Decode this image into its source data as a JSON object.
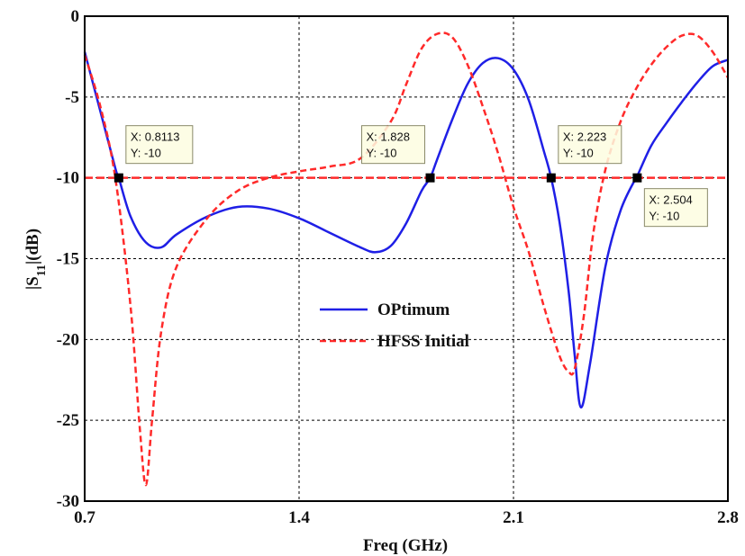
{
  "chart_data": {
    "type": "line",
    "xlabel": "Freq (GHz)",
    "ylabel_main": "|S",
    "ylabel_sub": "11",
    "ylabel_tail": "|(dB)",
    "xlim": [
      0.7,
      2.8
    ],
    "ylim": [
      -30,
      0
    ],
    "xticks": [
      0.7,
      1.4,
      2.1,
      2.8
    ],
    "xtick_labels": [
      "0.7",
      "1.4",
      "2.1",
      "2.8"
    ],
    "yticks": [
      0,
      -5,
      -10,
      -15,
      -20,
      -25,
      -30
    ],
    "ytick_labels": [
      "0",
      "-5",
      "-10",
      "-15",
      "-20",
      "-25",
      "-30"
    ],
    "grid": true,
    "legend_position": "center",
    "series": [
      {
        "name": "OPtimum",
        "color": "#1f1fe6",
        "style": "solid",
        "x": [
          0.7,
          0.75,
          0.8,
          0.8113,
          0.85,
          0.9,
          0.95,
          1.0,
          1.1,
          1.2,
          1.3,
          1.4,
          1.5,
          1.6,
          1.65,
          1.7,
          1.75,
          1.8,
          1.828,
          1.85,
          1.9,
          1.95,
          2.0,
          2.05,
          2.1,
          2.15,
          2.2,
          2.223,
          2.25,
          2.28,
          2.3,
          2.32,
          2.35,
          2.4,
          2.45,
          2.5,
          2.504,
          2.55,
          2.6,
          2.65,
          2.7,
          2.75,
          2.8
        ],
        "y": [
          -2.2,
          -5.8,
          -9.4,
          -10.0,
          -12.4,
          -14.0,
          -14.3,
          -13.5,
          -12.4,
          -11.8,
          -11.9,
          -12.5,
          -13.4,
          -14.3,
          -14.6,
          -14.2,
          -12.8,
          -10.8,
          -10.0,
          -8.9,
          -6.4,
          -4.2,
          -2.9,
          -2.6,
          -3.3,
          -5.2,
          -8.4,
          -10.0,
          -12.7,
          -17.0,
          -21.0,
          -24.2,
          -21.5,
          -15.5,
          -12.0,
          -10.0,
          -9.9,
          -8.0,
          -6.6,
          -5.3,
          -4.1,
          -3.1,
          -2.7
        ]
      },
      {
        "name": "HFSS Initial",
        "color": "#ff2a2a",
        "style": "dashed",
        "x": [
          0.7,
          0.75,
          0.8,
          0.85,
          0.88,
          0.9,
          0.92,
          0.95,
          1.0,
          1.1,
          1.2,
          1.3,
          1.4,
          1.5,
          1.6,
          1.7,
          1.75,
          1.8,
          1.85,
          1.9,
          1.95,
          2.0,
          2.05,
          2.1,
          2.15,
          2.2,
          2.25,
          2.28,
          2.3,
          2.33,
          2.36,
          2.4,
          2.45,
          2.5,
          2.55,
          2.6,
          2.65,
          2.7,
          2.75,
          2.8
        ],
        "y": [
          -2.4,
          -5.5,
          -10.0,
          -18.0,
          -25.5,
          -29.0,
          -25.0,
          -19.5,
          -15.5,
          -12.5,
          -10.8,
          -10.0,
          -9.6,
          -9.3,
          -8.8,
          -6.5,
          -4.2,
          -2.0,
          -1.1,
          -1.3,
          -3.0,
          -5.6,
          -8.5,
          -11.8,
          -14.6,
          -18.0,
          -21.0,
          -22.0,
          -21.8,
          -18.5,
          -13.5,
          -9.5,
          -6.5,
          -4.5,
          -3.0,
          -1.9,
          -1.2,
          -1.2,
          -2.2,
          -3.8
        ]
      },
      {
        "name": "",
        "color": "#ff2a2a",
        "style": "dashed",
        "x": [
          0.7,
          2.8
        ],
        "y": [
          -10,
          -10
        ]
      }
    ],
    "markers": [
      {
        "x": 0.8113,
        "y": -10,
        "label_x": "X: 0.8113",
        "label_y": "Y: -10"
      },
      {
        "x": 1.828,
        "y": -10,
        "label_x": "X: 1.828",
        "label_y": "Y: -10"
      },
      {
        "x": 2.223,
        "y": -10,
        "label_x": "X: 2.223",
        "label_y": "Y: -10"
      },
      {
        "x": 2.504,
        "y": -10,
        "label_x": "X: 2.504",
        "label_y": "Y: -10"
      }
    ]
  }
}
